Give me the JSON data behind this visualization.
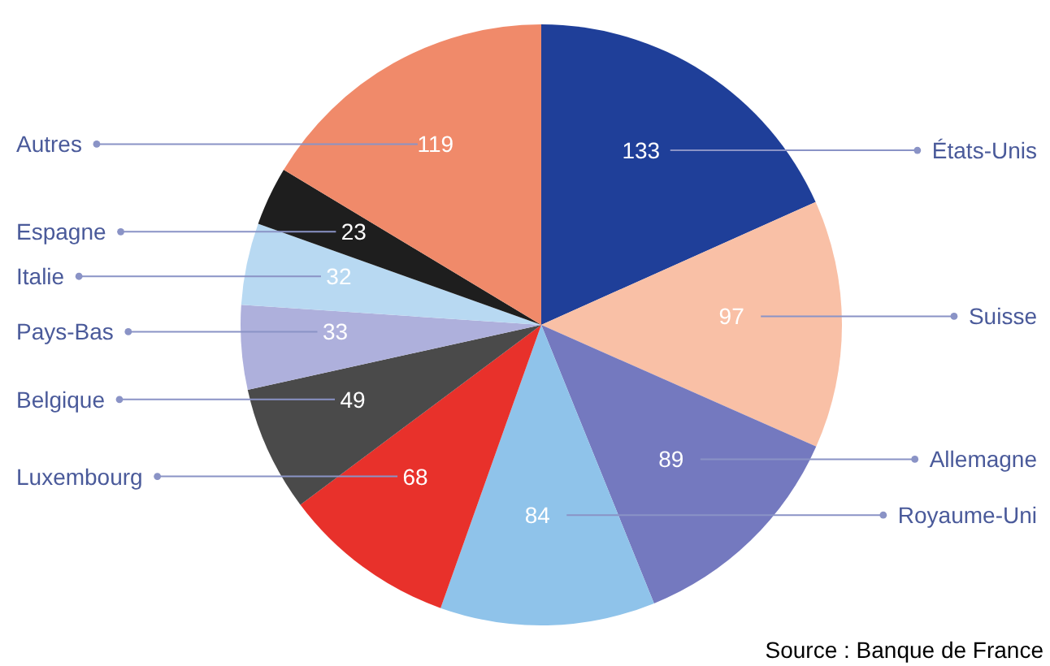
{
  "chart_data": {
    "type": "pie",
    "data_labels": true,
    "legend": false,
    "categories": [
      "États-Unis",
      "Suisse",
      "Allemagne",
      "Royaume-Uni",
      "Luxembourg",
      "Belgique",
      "Pays-Bas",
      "Italie",
      "Espagne",
      "Autres"
    ],
    "values": [
      133,
      97,
      89,
      84,
      68,
      49,
      33,
      32,
      23,
      119
    ],
    "colors": [
      "#1f3f99",
      "#f9c0a6",
      "#7479bf",
      "#8fc3ea",
      "#e8312b",
      "#4a4a4a",
      "#aeb0dc",
      "#b8d9f2",
      "#1e1e1e",
      "#f08a6a"
    ],
    "annotations": [
      "Source : Banque de France"
    ]
  }
}
